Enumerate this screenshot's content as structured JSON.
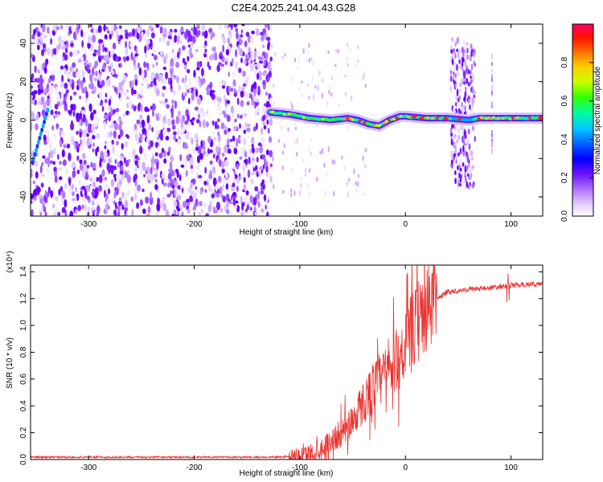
{
  "title": "C2E4.2025.241.04.43.G28",
  "chart_data": [
    {
      "type": "heatmap",
      "name": "spectrogram",
      "xlabel": "Height of straight line (km)",
      "ylabel": "Frequency (Hz)",
      "xlim": [
        -355,
        130
      ],
      "ylim": [
        -50,
        50
      ],
      "x_ticks": [
        -300,
        -200,
        -100,
        0,
        100
      ],
      "x_tick_labels": [
        "-300",
        "-200",
        "-100",
        "0",
        "100"
      ],
      "y_ticks": [
        -40,
        -20,
        0,
        20,
        40
      ],
      "y_tick_labels": [
        "-40",
        "-20",
        "0",
        "20",
        "40"
      ],
      "colorbar": {
        "label": "Normalized spectral amplitude",
        "range": [
          0.0,
          1.0
        ],
        "ticks": [
          0.0,
          0.2,
          0.4,
          0.6,
          0.8
        ],
        "tick_labels": [
          "0.0",
          "0.2",
          "0.4",
          "0.6",
          "0.8"
        ],
        "colormap": [
          "#ffffff",
          "#c8a0ff",
          "#7a1cff",
          "#0000ff",
          "#00ccff",
          "#00ff66",
          "#ffff00",
          "#ff7f00",
          "#ff0000"
        ]
      },
      "noise_region_km": [
        -355,
        -127
      ],
      "signal_line": {
        "description_points_km_hz": [
          [
            -128,
            4
          ],
          [
            -110,
            3
          ],
          [
            -90,
            1
          ],
          [
            -70,
            0
          ],
          [
            -55,
            1
          ],
          [
            -45,
            0
          ],
          [
            -35,
            -2
          ],
          [
            -25,
            -3
          ],
          [
            -15,
            0
          ],
          [
            -5,
            2
          ],
          [
            0,
            2
          ],
          [
            20,
            1
          ],
          [
            40,
            1
          ],
          [
            60,
            0
          ],
          [
            70,
            1
          ],
          [
            80,
            1
          ],
          [
            100,
            1
          ],
          [
            130,
            1
          ]
        ]
      },
      "interference_bands_km": [
        [
          43,
          66
        ]
      ]
    },
    {
      "type": "line",
      "name": "snr",
      "xlabel": "Height of straight line (km)",
      "ylabel": "SNR (10 * v/v)",
      "y_multiplier": "(x10⁴)",
      "xlim": [
        -355,
        130
      ],
      "ylim": [
        0,
        1.45
      ],
      "x_ticks": [
        -300,
        -200,
        -100,
        0,
        100
      ],
      "x_tick_labels": [
        "-300",
        "-200",
        "-100",
        "0",
        "100"
      ],
      "y_ticks": [
        0.0,
        0.2,
        0.4,
        0.6,
        0.8,
        1.0,
        1.2,
        1.4
      ],
      "y_tick_labels": [
        "0.0",
        "0.2",
        "0.4",
        "0.6",
        "0.8",
        "1.0",
        "1.2",
        "1.4"
      ],
      "color": "#e8312d",
      "series": [
        {
          "name": "SNR",
          "x": [
            -355,
            -300,
            -200,
            -120,
            -100,
            -80,
            -60,
            -50,
            -40,
            -30,
            -20,
            -10,
            0,
            10,
            20,
            30,
            40,
            60,
            80,
            100,
            130
          ],
          "y": [
            0.01,
            0.01,
            0.01,
            0.01,
            0.02,
            0.08,
            0.2,
            0.3,
            0.42,
            0.55,
            0.62,
            0.72,
            0.85,
            1.0,
            1.12,
            1.2,
            1.25,
            1.27,
            1.28,
            1.3,
            1.31
          ]
        }
      ]
    }
  ]
}
